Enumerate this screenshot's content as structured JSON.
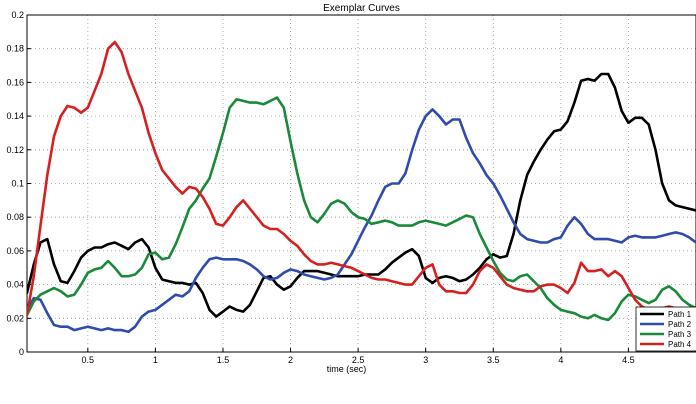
{
  "chart_data": {
    "type": "line",
    "title": "Exemplar Curves",
    "xlabel": "time (sec)",
    "ylabel": "",
    "xlim": [
      0.05,
      5.0
    ],
    "ylim": [
      0,
      0.2
    ],
    "xticks": [
      0.5,
      1,
      1.5,
      2,
      2.5,
      3,
      3.5,
      4,
      4.5
    ],
    "yticks": [
      0,
      0.02,
      0.04,
      0.06,
      0.08,
      0.1,
      0.12,
      0.14,
      0.16,
      0.18,
      0.2
    ],
    "grid": true,
    "legend_position": "bottom-right",
    "series": [
      {
        "name": "Path 1",
        "color": "#000000",
        "x": [
          0.05,
          0.1,
          0.15,
          0.2,
          0.25,
          0.3,
          0.35,
          0.4,
          0.45,
          0.5,
          0.55,
          0.6,
          0.65,
          0.7,
          0.75,
          0.8,
          0.85,
          0.9,
          0.95,
          1.0,
          1.05,
          1.1,
          1.15,
          1.2,
          1.25,
          1.3,
          1.35,
          1.4,
          1.45,
          1.5,
          1.55,
          1.6,
          1.65,
          1.7,
          1.75,
          1.8,
          1.85,
          1.9,
          1.95,
          2.0,
          2.05,
          2.1,
          2.15,
          2.2,
          2.25,
          2.3,
          2.35,
          2.4,
          2.45,
          2.5,
          2.55,
          2.6,
          2.65,
          2.7,
          2.75,
          2.8,
          2.85,
          2.9,
          2.95,
          3.0,
          3.05,
          3.1,
          3.15,
          3.2,
          3.25,
          3.3,
          3.35,
          3.4,
          3.45,
          3.5,
          3.55,
          3.6,
          3.65,
          3.7,
          3.75,
          3.8,
          3.85,
          3.9,
          3.95,
          4.0,
          4.05,
          4.1,
          4.15,
          4.2,
          4.25,
          4.3,
          4.35,
          4.4,
          4.45,
          4.5,
          4.55,
          4.6,
          4.65,
          4.7,
          4.75,
          4.8,
          4.85,
          4.9,
          4.95,
          5.0
        ],
        "y": [
          0.035,
          0.052,
          0.065,
          0.067,
          0.052,
          0.042,
          0.041,
          0.048,
          0.056,
          0.06,
          0.062,
          0.062,
          0.064,
          0.065,
          0.063,
          0.061,
          0.065,
          0.067,
          0.062,
          0.05,
          0.043,
          0.042,
          0.041,
          0.041,
          0.04,
          0.041,
          0.035,
          0.025,
          0.021,
          0.024,
          0.027,
          0.025,
          0.024,
          0.028,
          0.036,
          0.044,
          0.045,
          0.04,
          0.037,
          0.039,
          0.044,
          0.048,
          0.048,
          0.048,
          0.047,
          0.046,
          0.045,
          0.045,
          0.045,
          0.045,
          0.046,
          0.046,
          0.046,
          0.049,
          0.053,
          0.056,
          0.059,
          0.061,
          0.057,
          0.044,
          0.041,
          0.044,
          0.045,
          0.044,
          0.042,
          0.043,
          0.046,
          0.05,
          0.055,
          0.058,
          0.056,
          0.057,
          0.07,
          0.09,
          0.105,
          0.113,
          0.12,
          0.126,
          0.131,
          0.132,
          0.137,
          0.148,
          0.161,
          0.162,
          0.161,
          0.165,
          0.165,
          0.157,
          0.143,
          0.136,
          0.139,
          0.139,
          0.135,
          0.12,
          0.1,
          0.09,
          0.087,
          0.086,
          0.085,
          0.084
        ]
      },
      {
        "name": "Path 2",
        "color": "#2f4bad",
        "x": [
          0.05,
          0.1,
          0.15,
          0.2,
          0.25,
          0.3,
          0.35,
          0.4,
          0.45,
          0.5,
          0.55,
          0.6,
          0.65,
          0.7,
          0.75,
          0.8,
          0.85,
          0.9,
          0.95,
          1.0,
          1.05,
          1.1,
          1.15,
          1.2,
          1.25,
          1.3,
          1.35,
          1.4,
          1.45,
          1.5,
          1.55,
          1.6,
          1.65,
          1.7,
          1.75,
          1.8,
          1.85,
          1.9,
          1.95,
          2.0,
          2.05,
          2.1,
          2.15,
          2.2,
          2.25,
          2.3,
          2.35,
          2.4,
          2.45,
          2.5,
          2.55,
          2.6,
          2.65,
          2.7,
          2.75,
          2.8,
          2.85,
          2.9,
          2.95,
          3.0,
          3.05,
          3.1,
          3.15,
          3.2,
          3.25,
          3.3,
          3.35,
          3.4,
          3.45,
          3.5,
          3.55,
          3.6,
          3.65,
          3.7,
          3.75,
          3.8,
          3.85,
          3.9,
          3.95,
          4.0,
          4.05,
          4.1,
          4.15,
          4.2,
          4.25,
          4.3,
          4.35,
          4.4,
          4.45,
          4.5,
          4.55,
          4.6,
          4.65,
          4.7,
          4.75,
          4.8,
          4.85,
          4.9,
          4.95,
          5.0
        ],
        "y": [
          0.025,
          0.032,
          0.031,
          0.023,
          0.016,
          0.015,
          0.015,
          0.013,
          0.014,
          0.015,
          0.014,
          0.013,
          0.014,
          0.013,
          0.013,
          0.012,
          0.015,
          0.021,
          0.024,
          0.025,
          0.028,
          0.031,
          0.034,
          0.033,
          0.036,
          0.044,
          0.05,
          0.055,
          0.056,
          0.055,
          0.055,
          0.055,
          0.054,
          0.052,
          0.049,
          0.045,
          0.043,
          0.044,
          0.047,
          0.049,
          0.048,
          0.046,
          0.045,
          0.044,
          0.043,
          0.044,
          0.046,
          0.052,
          0.058,
          0.066,
          0.074,
          0.081,
          0.09,
          0.098,
          0.1,
          0.1,
          0.106,
          0.12,
          0.132,
          0.14,
          0.144,
          0.14,
          0.135,
          0.138,
          0.138,
          0.127,
          0.118,
          0.112,
          0.105,
          0.1,
          0.093,
          0.085,
          0.077,
          0.07,
          0.067,
          0.066,
          0.065,
          0.065,
          0.067,
          0.068,
          0.075,
          0.08,
          0.076,
          0.07,
          0.067,
          0.067,
          0.067,
          0.066,
          0.065,
          0.068,
          0.069,
          0.068,
          0.068,
          0.068,
          0.069,
          0.07,
          0.071,
          0.07,
          0.068,
          0.065
        ]
      },
      {
        "name": "Path 3",
        "color": "#1a8a3a",
        "x": [
          0.05,
          0.1,
          0.15,
          0.2,
          0.25,
          0.3,
          0.35,
          0.4,
          0.45,
          0.5,
          0.55,
          0.6,
          0.65,
          0.7,
          0.75,
          0.8,
          0.85,
          0.9,
          0.95,
          1.0,
          1.05,
          1.1,
          1.15,
          1.2,
          1.25,
          1.3,
          1.35,
          1.4,
          1.45,
          1.5,
          1.55,
          1.6,
          1.65,
          1.7,
          1.75,
          1.8,
          1.85,
          1.9,
          1.95,
          2.0,
          2.05,
          2.1,
          2.15,
          2.2,
          2.25,
          2.3,
          2.35,
          2.4,
          2.45,
          2.5,
          2.55,
          2.6,
          2.65,
          2.7,
          2.75,
          2.8,
          2.85,
          2.9,
          2.95,
          3.0,
          3.05,
          3.1,
          3.15,
          3.2,
          3.25,
          3.3,
          3.35,
          3.4,
          3.45,
          3.5,
          3.55,
          3.6,
          3.65,
          3.7,
          3.75,
          3.8,
          3.85,
          3.9,
          3.95,
          4.0,
          4.05,
          4.1,
          4.15,
          4.2,
          4.25,
          4.3,
          4.35,
          4.4,
          4.45,
          4.5,
          4.55,
          4.6,
          4.65,
          4.7,
          4.75,
          4.8,
          4.85,
          4.9,
          4.95,
          5.0
        ],
        "y": [
          0.022,
          0.03,
          0.034,
          0.036,
          0.038,
          0.036,
          0.033,
          0.034,
          0.04,
          0.047,
          0.049,
          0.05,
          0.054,
          0.05,
          0.045,
          0.045,
          0.046,
          0.05,
          0.058,
          0.059,
          0.055,
          0.056,
          0.064,
          0.074,
          0.085,
          0.09,
          0.097,
          0.103,
          0.116,
          0.13,
          0.145,
          0.15,
          0.149,
          0.148,
          0.148,
          0.147,
          0.149,
          0.151,
          0.145,
          0.125,
          0.106,
          0.09,
          0.08,
          0.077,
          0.082,
          0.088,
          0.09,
          0.088,
          0.083,
          0.08,
          0.079,
          0.076,
          0.077,
          0.078,
          0.077,
          0.075,
          0.075,
          0.075,
          0.077,
          0.078,
          0.077,
          0.076,
          0.075,
          0.077,
          0.079,
          0.081,
          0.08,
          0.07,
          0.062,
          0.054,
          0.047,
          0.043,
          0.042,
          0.045,
          0.046,
          0.042,
          0.038,
          0.032,
          0.028,
          0.025,
          0.024,
          0.023,
          0.021,
          0.02,
          0.022,
          0.02,
          0.019,
          0.023,
          0.03,
          0.034,
          0.033,
          0.031,
          0.029,
          0.031,
          0.037,
          0.039,
          0.036,
          0.031,
          0.028,
          0.026
        ]
      },
      {
        "name": "Path 4",
        "color": "#d62020",
        "x": [
          0.05,
          0.1,
          0.15,
          0.2,
          0.25,
          0.3,
          0.35,
          0.4,
          0.45,
          0.5,
          0.55,
          0.6,
          0.65,
          0.7,
          0.75,
          0.8,
          0.85,
          0.9,
          0.95,
          1.0,
          1.05,
          1.1,
          1.15,
          1.2,
          1.25,
          1.3,
          1.35,
          1.4,
          1.45,
          1.5,
          1.55,
          1.6,
          1.65,
          1.7,
          1.75,
          1.8,
          1.85,
          1.9,
          1.95,
          2.0,
          2.05,
          2.1,
          2.15,
          2.2,
          2.25,
          2.3,
          2.35,
          2.4,
          2.45,
          2.5,
          2.55,
          2.6,
          2.65,
          2.7,
          2.75,
          2.8,
          2.85,
          2.9,
          2.95,
          3.0,
          3.05,
          3.1,
          3.15,
          3.2,
          3.25,
          3.3,
          3.35,
          3.4,
          3.45,
          3.5,
          3.55,
          3.6,
          3.65,
          3.7,
          3.75,
          3.8,
          3.85,
          3.9,
          3.95,
          4.0,
          4.05,
          4.1,
          4.15,
          4.2,
          4.25,
          4.3,
          4.35,
          4.4,
          4.45,
          4.5,
          4.55,
          4.6,
          4.65,
          4.7,
          4.75,
          4.8,
          4.85,
          4.9,
          4.95,
          5.0
        ],
        "y": [
          0.022,
          0.045,
          0.075,
          0.105,
          0.128,
          0.14,
          0.146,
          0.145,
          0.142,
          0.145,
          0.155,
          0.165,
          0.18,
          0.184,
          0.178,
          0.165,
          0.155,
          0.145,
          0.13,
          0.118,
          0.108,
          0.103,
          0.098,
          0.094,
          0.098,
          0.097,
          0.092,
          0.085,
          0.076,
          0.075,
          0.08,
          0.086,
          0.09,
          0.085,
          0.08,
          0.075,
          0.073,
          0.073,
          0.07,
          0.066,
          0.063,
          0.058,
          0.054,
          0.052,
          0.052,
          0.053,
          0.052,
          0.051,
          0.05,
          0.048,
          0.046,
          0.044,
          0.043,
          0.043,
          0.042,
          0.041,
          0.04,
          0.04,
          0.045,
          0.05,
          0.052,
          0.04,
          0.036,
          0.036,
          0.035,
          0.035,
          0.04,
          0.048,
          0.052,
          0.05,
          0.045,
          0.04,
          0.038,
          0.037,
          0.036,
          0.036,
          0.039,
          0.04,
          0.04,
          0.038,
          0.035,
          0.041,
          0.053,
          0.048,
          0.048,
          0.049,
          0.045,
          0.048,
          0.045,
          0.038,
          0.031,
          0.027,
          0.025,
          0.025,
          0.026,
          0.027,
          0.026,
          0.025,
          0.025,
          0.025
        ]
      }
    ]
  }
}
